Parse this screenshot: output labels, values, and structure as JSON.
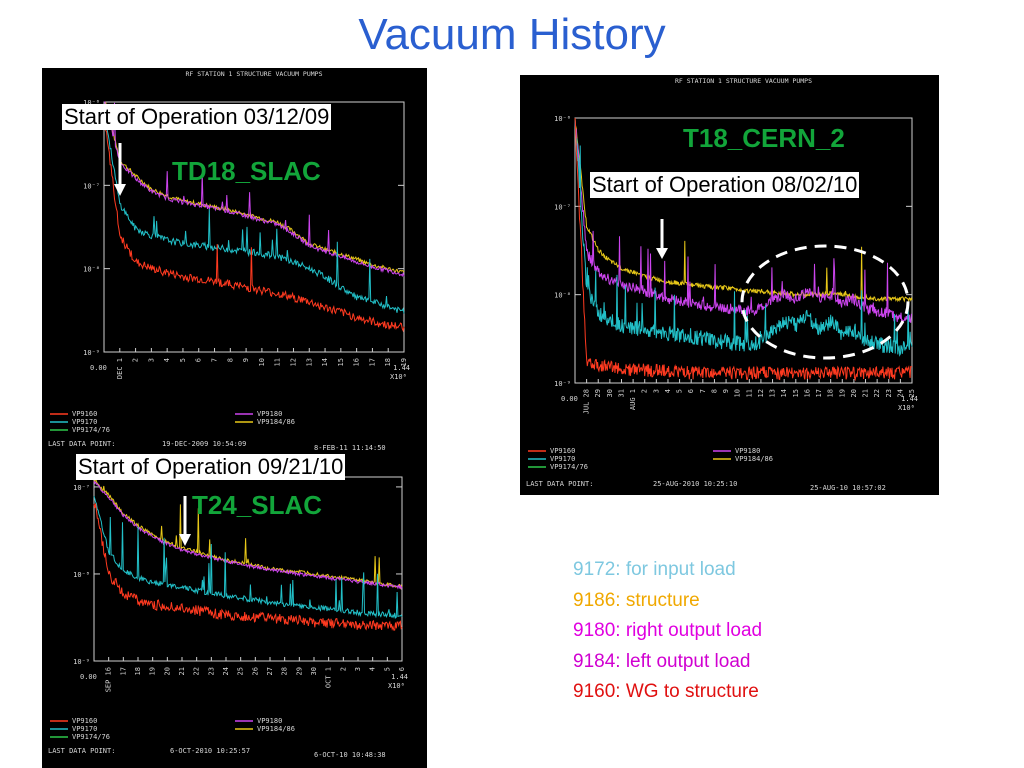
{
  "slide": {
    "title": "Vacuum History"
  },
  "chart_data": [
    {
      "type": "line",
      "plot_title": "RF STATION 1 STRUCTURE VACUUM PUMPS",
      "ylabels": [
        "10⁻⁶",
        "10⁻⁷",
        "10⁻⁸",
        "10⁻⁹"
      ],
      "xlabels": [
        "0.00",
        "DEC 1",
        "2",
        "3",
        "4",
        "5",
        "6",
        "7",
        "8",
        "9",
        "10",
        "11",
        "12",
        "13",
        "14",
        "15",
        "16",
        "17",
        "18",
        "19"
      ],
      "xscale": "1.44",
      "xscale_unit": "X10⁶",
      "yscale": "log",
      "ylim": [
        1e-09,
        1e-06
      ],
      "legend": [
        "VP9160",
        "VP9170",
        "VP9174/76",
        "VP9180",
        "VP9184/86"
      ],
      "last_point_label": "LAST DATA POINT:",
      "last_point_time": "19-DEC-2009 10:54:09",
      "print_time": "8-FEB-11 11:14:50",
      "series": [
        {
          "name": "VP9184/86",
          "color": "#e8c818",
          "values": [
            1.2e-06,
            2e-07,
            1.3e-07,
            9e-08,
            7.5e-08,
            6.5e-08,
            6e-08,
            5.5e-08,
            5e-08,
            4.5e-08,
            4e-08,
            3.6e-08,
            2.8e-08,
            2e-08,
            1.7e-08,
            1.5e-08,
            1.3e-08,
            1.1e-08,
            1e-08,
            9e-09
          ]
        },
        {
          "name": "VP9180",
          "color": "#cc44ee",
          "values": [
            1.1e-06,
            1.9e-07,
            1.2e-07,
            8.5e-08,
            7e-08,
            6.2e-08,
            5.8e-08,
            5.3e-08,
            4.8e-08,
            4.3e-08,
            3.8e-08,
            3.4e-08,
            2.6e-08,
            1.9e-08,
            1.6e-08,
            1.4e-08,
            1.2e-08,
            1.05e-08,
            9.5e-09,
            8.5e-09
          ]
        },
        {
          "name": "VP9170",
          "color": "#22c0c8",
          "values": [
            8e-07,
            6e-08,
            3e-08,
            2.5e-08,
            2.2e-08,
            2e-08,
            1.9e-08,
            1.8e-08,
            1.7e-08,
            1.6e-08,
            1.5e-08,
            1.4e-08,
            1.2e-08,
            1e-08,
            8e-09,
            6e-09,
            4.5e-09,
            4e-09,
            3.5e-09,
            3e-09
          ]
        },
        {
          "name": "VP9160",
          "color": "#ff3a20",
          "values": [
            7e-07,
            2.5e-08,
            1.2e-08,
            1e-08,
            9e-09,
            8e-09,
            7.5e-09,
            7e-09,
            6.5e-09,
            6e-09,
            5.5e-09,
            5e-09,
            4.5e-09,
            4e-09,
            3.4e-09,
            3e-09,
            2.6e-09,
            2.3e-09,
            2.1e-09,
            2e-09
          ]
        }
      ]
    },
    {
      "type": "line",
      "plot_title": "RF STATION 1 STRUCTURE VACUUM PUMPS",
      "ylabels": [
        "10⁻⁶",
        "10⁻⁷",
        "10⁻⁸",
        "10⁻⁹"
      ],
      "xlabels": [
        "0.00",
        "JUL 28",
        "29",
        "30",
        "31",
        "AUG 1",
        "2",
        "3",
        "4",
        "5",
        "6",
        "7",
        "8",
        "9",
        "10",
        "11",
        "12",
        "13",
        "14",
        "15",
        "16",
        "17",
        "18",
        "19",
        "20",
        "21",
        "22",
        "23",
        "24",
        "25"
      ],
      "xscale": "1.44",
      "xscale_unit": "X10⁶",
      "yscale": "log",
      "ylim": [
        1e-09,
        1e-06
      ],
      "legend": [
        "VP9160",
        "VP9170",
        "VP9174/76",
        "VP9180",
        "VP9184/86"
      ],
      "last_point_label": "LAST DATA POINT:",
      "last_point_time": "25-AUG-2010 10:25:10",
      "print_time": "25-AUG-10 10:57:02",
      "series": [
        {
          "name": "VP9184/86",
          "color": "#e8c818",
          "values": [
            1e-06,
            6e-08,
            3.2e-08,
            2.4e-08,
            2e-08,
            1.8e-08,
            1.6e-08,
            1.5e-08,
            1.4e-08,
            1.35e-08,
            1.3e-08,
            1.25e-08,
            1.2e-08,
            1.2e-08,
            1.15e-08,
            1.1e-08,
            1.1e-08,
            1.05e-08,
            1.05e-08,
            1e-08,
            1e-08,
            1e-08,
            1.05e-08,
            1e-08,
            9.5e-09,
            9.5e-09,
            9e-09,
            9e-09,
            9e-09,
            9e-09
          ]
        },
        {
          "name": "VP9180",
          "color": "#cc44ee",
          "values": [
            1e-06,
            3e-08,
            1.8e-08,
            1.5e-08,
            1.3e-08,
            1.2e-08,
            1.1e-08,
            1e-08,
            9e-09,
            8.5e-09,
            8e-09,
            7.5e-09,
            7.2e-09,
            7e-09,
            6.8e-09,
            6.5e-09,
            7e-09,
            9e-09,
            1e-08,
            9e-09,
            1.1e-08,
            9e-09,
            1e-08,
            8e-09,
            9e-09,
            7e-09,
            6.5e-09,
            6e-09,
            5.5e-09,
            5.5e-09
          ]
        },
        {
          "name": "VP9170",
          "color": "#22c0c8",
          "values": [
            1e-06,
            1.2e-08,
            6e-09,
            5e-09,
            4.5e-09,
            4.2e-09,
            4e-09,
            3.8e-09,
            3.6e-09,
            3.5e-09,
            3.3e-09,
            3.2e-09,
            3e-09,
            2.9e-09,
            2.8e-09,
            2.7e-09,
            3e-09,
            4e-09,
            5e-09,
            4.5e-09,
            6e-09,
            4e-09,
            5e-09,
            3.5e-09,
            4e-09,
            3e-09,
            2.8e-09,
            2.6e-09,
            2.5e-09,
            2.4e-09
          ]
        },
        {
          "name": "VP9160",
          "color": "#ff3a20",
          "values": [
            1e-06,
            1.8e-09,
            1.6e-09,
            1.5e-09,
            1.5e-09,
            1.4e-09,
            1.4e-09,
            1.4e-09,
            1.35e-09,
            1.35e-09,
            1.3e-09,
            1.3e-09,
            1.3e-09,
            1.3e-09,
            1.3e-09,
            1.3e-09,
            1.3e-09,
            1.3e-09,
            1.3e-09,
            1.3e-09,
            1.3e-09,
            1.3e-09,
            1.3e-09,
            1.3e-09,
            1.3e-09,
            1.3e-09,
            1.3e-09,
            1.3e-09,
            1.3e-09,
            1.3e-09
          ]
        }
      ]
    },
    {
      "type": "line",
      "plot_title": "",
      "ylabels": [
        "10⁻⁷",
        "10⁻⁸",
        "10⁻⁹"
      ],
      "xlabels": [
        "0.00",
        "SEP 16",
        "17",
        "18",
        "19",
        "20",
        "21",
        "22",
        "23",
        "24",
        "25",
        "26",
        "27",
        "28",
        "29",
        "30",
        "OCT 1",
        "2",
        "3",
        "4",
        "5",
        "6"
      ],
      "xscale": "1.44",
      "xscale_unit": "X10⁶",
      "yscale": "log",
      "ylim": [
        1e-09,
        1.3e-07
      ],
      "legend": [
        "VP9160",
        "VP9170",
        "VP9174/76",
        "VP9180",
        "VP9184/86"
      ],
      "last_point_label": "LAST DATA POINT:",
      "last_point_time": "6-OCT-2010 10:25:57",
      "print_time": "6-OCT-10 10:48:38",
      "series": [
        {
          "name": "VP9184/86",
          "color": "#e8c818",
          "values": [
            1.2e-07,
            8e-08,
            5e-08,
            3.6e-08,
            2.8e-08,
            2.3e-08,
            2e-08,
            1.8e-08,
            1.6e-08,
            1.45e-08,
            1.35e-08,
            1.25e-08,
            1.15e-08,
            1.1e-08,
            1.05e-08,
            1e-08,
            9.5e-09,
            9e-09,
            8.5e-09,
            8e-09,
            7.5e-09,
            7.2e-09
          ]
        },
        {
          "name": "VP9180",
          "color": "#cc44ee",
          "values": [
            1.15e-07,
            7.5e-08,
            4.7e-08,
            3.4e-08,
            2.7e-08,
            2.2e-08,
            1.9e-08,
            1.7e-08,
            1.55e-08,
            1.4e-08,
            1.3e-08,
            1.2e-08,
            1.12e-08,
            1.06e-08,
            1e-08,
            9.5e-09,
            9e-09,
            8.6e-09,
            8.2e-09,
            7.8e-09,
            7.4e-09,
            7e-09
          ]
        },
        {
          "name": "VP9170",
          "color": "#22c0c8",
          "values": [
            8e-08,
            1.8e-08,
            1.1e-08,
            9e-09,
            8e-09,
            7.5e-09,
            7e-09,
            6.5e-09,
            6e-09,
            5.6e-09,
            5.3e-09,
            5e-09,
            4.7e-09,
            4.5e-09,
            4.3e-09,
            4.1e-09,
            4e-09,
            3.8e-09,
            3.6e-09,
            3.5e-09,
            3.4e-09,
            3.3e-09
          ]
        },
        {
          "name": "VP9160",
          "color": "#ff3a20",
          "values": [
            7e-08,
            1e-08,
            6e-09,
            5e-09,
            4.5e-09,
            4.2e-09,
            4e-09,
            3.8e-09,
            3.6e-09,
            3.4e-09,
            3.3e-09,
            3.2e-09,
            3.1e-09,
            3e-09,
            2.9e-09,
            2.8e-09,
            2.7e-09,
            2.7e-09,
            2.6e-09,
            2.6e-09,
            2.5e-09,
            2.5e-09
          ]
        }
      ]
    }
  ],
  "annotations": {
    "p1_start": "Start of Operation 03/12/09",
    "p1_name": "TD18_SLAC",
    "p2_name": "T18_CERN_2",
    "p2_start": "Start of Operation 08/02/10",
    "p3_start": "Start of Operation 09/21/10",
    "p3_name": "T24_SLAC"
  },
  "key": [
    {
      "text": "9172: for input load",
      "color": "#7ec8e0"
    },
    {
      "text": "9186: structure",
      "color": "#f0a800"
    },
    {
      "text": "9180: right output load",
      "color": "#e000e0"
    },
    {
      "text": "9184: left output load",
      "color": "#d000d0"
    },
    {
      "text": "9160: WG to structure",
      "color": "#e01010"
    }
  ],
  "legend_colors": {
    "VP9160": "#ff3a20",
    "VP9170": "#22c0c8",
    "VP9174/76": "#2ec84a",
    "VP9180": "#cc44ee",
    "VP9184/86": "#e8c818"
  }
}
